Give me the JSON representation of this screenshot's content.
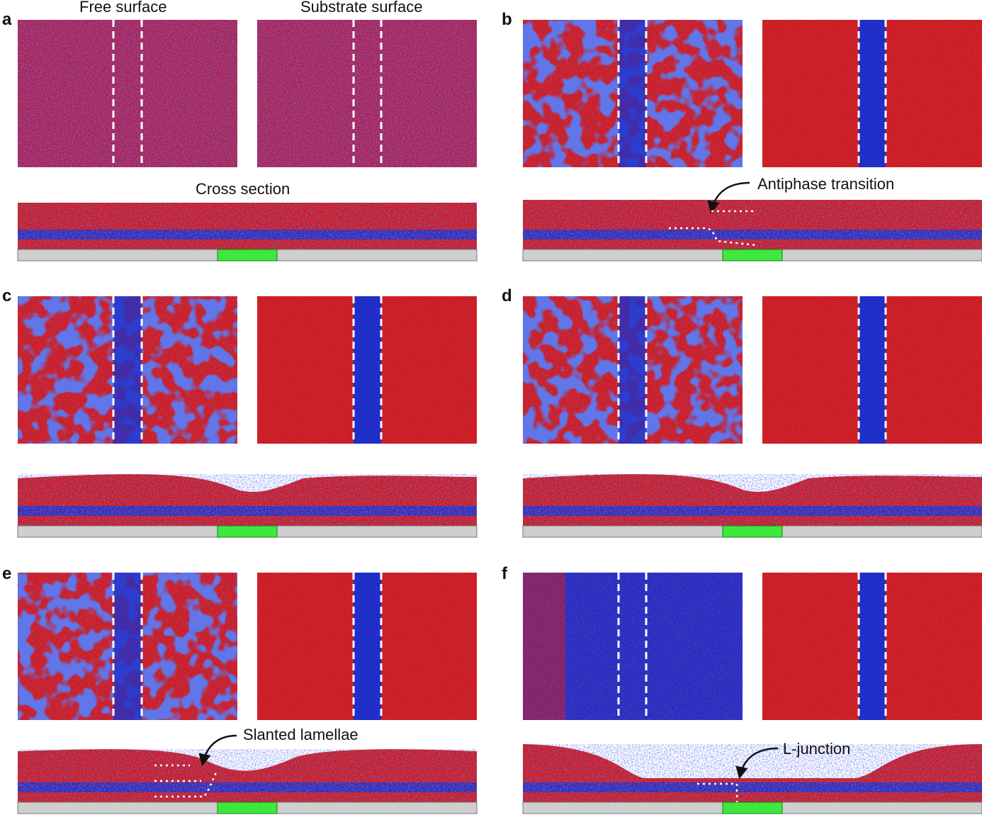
{
  "column_titles": {
    "free_surface": "Free surface",
    "substrate_surface": "Substrate surface"
  },
  "panels": [
    {
      "letter": "a",
      "label": ""
    },
    {
      "letter": "b",
      "label": ""
    },
    {
      "letter": "c",
      "label": ""
    },
    {
      "letter": "d",
      "label": ""
    },
    {
      "letter": "e",
      "label": ""
    },
    {
      "letter": "f",
      "label": ""
    }
  ],
  "annotations": {
    "cross_section": "Cross section",
    "antiphase": "Antiphase transition",
    "slanted": "Slanted lamellae",
    "ljunction": "L-junction"
  },
  "colors": {
    "red": "#d41a1a",
    "blue": "#1f2fc8",
    "substrate": "#cfcfcf",
    "stripe": "#3ee83e"
  }
}
